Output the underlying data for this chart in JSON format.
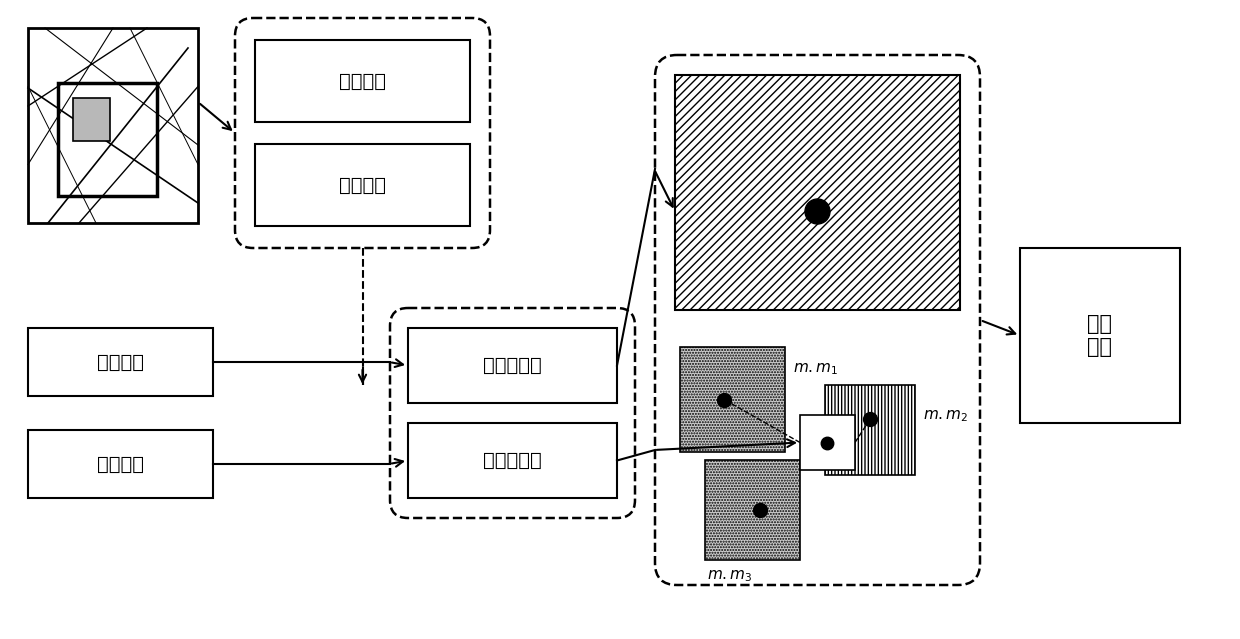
{
  "bg_color": "#ffffff",
  "text_color": "#000000",
  "label_dijia": "地形分布",
  "label_zhuyao": "主要地形",
  "label_mubiao_diqu": "目标地区",
  "label_zhoubian_diqu": "周边地区",
  "label_mubiao_shuju": "目标数据集",
  "label_fuzhu_shuju": "辅助数据集",
  "label_tezheng": "特征\n向量",
  "label_mm1": "$m.m_1$",
  "label_mm2": "$m.m_2$",
  "label_mm3": "$m.m_3$",
  "figsize": [
    12.4,
    6.39
  ],
  "dpi": 100
}
